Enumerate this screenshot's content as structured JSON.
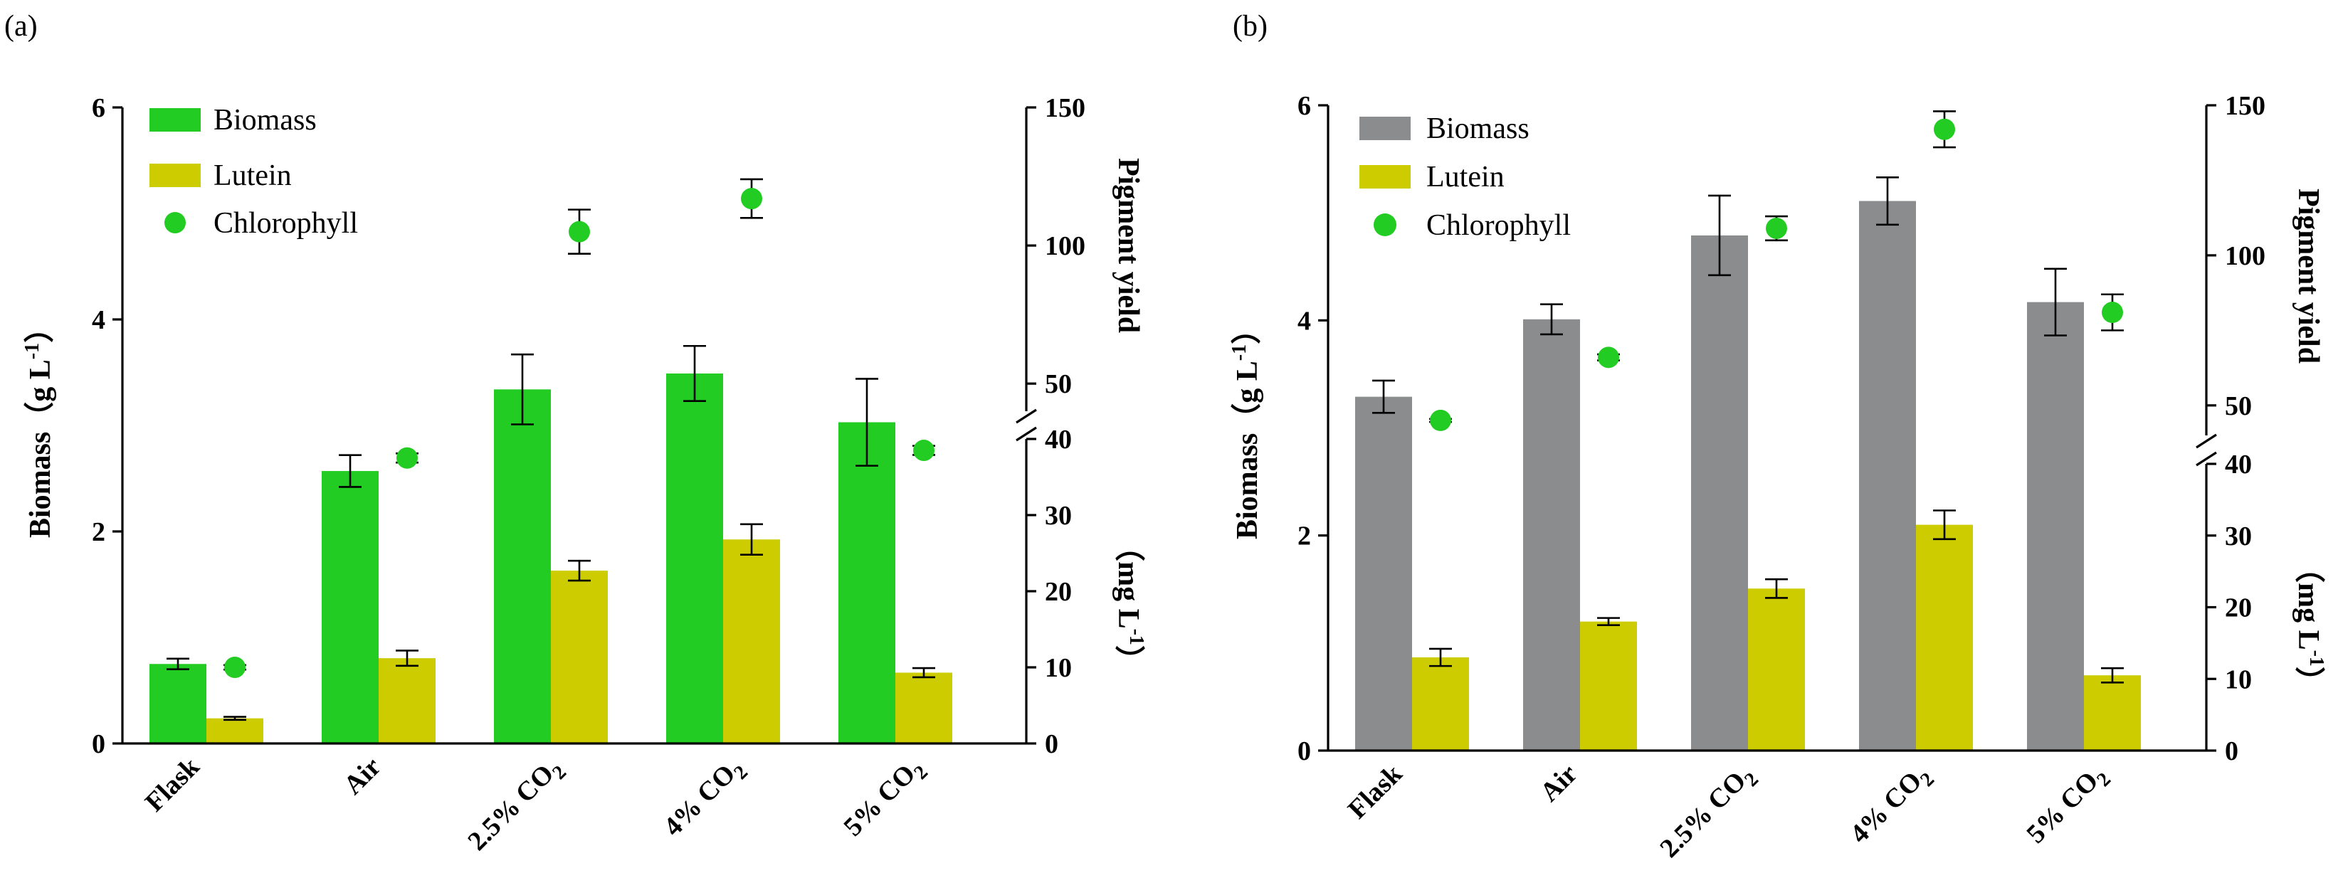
{
  "colors": {
    "biomass_a": "#22cc22",
    "biomass_b": "#8a8c8e",
    "lutein": "#cccc00",
    "chlorophyll": "#22cc22"
  },
  "chart_data": [
    {
      "type": "bar",
      "panel_label": "(a)",
      "categories": [
        "Flask",
        "Air",
        "2.5% CO2",
        "4% CO2",
        "5% CO2"
      ],
      "category_display": [
        {
          "base": "Flask",
          "sub": ""
        },
        {
          "base": "Air",
          "sub": ""
        },
        {
          "base": "2.5% CO",
          "sub": "2"
        },
        {
          "base": "4% CO",
          "sub": "2"
        },
        {
          "base": "5% CO",
          "sub": "2"
        }
      ],
      "legend": {
        "position": "top-left",
        "entries": [
          "Biomass",
          "Lutein",
          "Chlorophyll"
        ]
      },
      "left_axis": {
        "title": "Biomass（g L",
        "title_sup": "-1",
        "title_end": "）",
        "ylim": [
          0,
          6
        ],
        "ticks": [
          0,
          2,
          4,
          6
        ],
        "tick_labels": [
          "0",
          "2",
          "4",
          "6"
        ]
      },
      "right_axis": {
        "title_upper": "Pigment yield",
        "title_lower": "（mg L",
        "title_lower_sup": "-1",
        "title_lower_end": "）",
        "broken": true,
        "lower_range": [
          0,
          40
        ],
        "upper_range": [
          40,
          150
        ],
        "ticks": [
          0,
          10,
          20,
          30,
          40,
          50,
          100,
          150
        ],
        "tick_labels": [
          "0",
          "10",
          "20",
          "30",
          "40",
          "50",
          "100",
          "150"
        ]
      },
      "series": [
        {
          "name": "Biomass",
          "axis": "left",
          "values": [
            0.75,
            2.57,
            3.34,
            3.49,
            3.03
          ],
          "errors": [
            0.05,
            0.15,
            0.33,
            0.26,
            0.41
          ]
        },
        {
          "name": "Lutein",
          "axis": "right",
          "values": [
            3.3,
            11.2,
            22.7,
            26.8,
            9.3
          ],
          "errors": [
            0.2,
            1.0,
            1.3,
            2.0,
            0.6
          ]
        },
        {
          "name": "Chlorophyll",
          "axis": "right",
          "values": [
            10,
            37.5,
            105,
            117,
            38.5
          ],
          "errors": [
            0.3,
            0.6,
            8,
            7,
            0.6
          ]
        }
      ]
    },
    {
      "type": "bar",
      "panel_label": "(b)",
      "categories": [
        "Flask",
        "Air",
        "2.5% CO2",
        "4% CO2",
        "5% CO2"
      ],
      "category_display": [
        {
          "base": "Flask",
          "sub": ""
        },
        {
          "base": "Air",
          "sub": ""
        },
        {
          "base": "2.5% CO",
          "sub": "2"
        },
        {
          "base": "4% CO",
          "sub": "2"
        },
        {
          "base": "5% CO",
          "sub": "2"
        }
      ],
      "legend": {
        "position": "top-left",
        "entries": [
          "Biomass",
          "Lutein",
          "Chlorophyll"
        ]
      },
      "left_axis": {
        "title": "Biomass（g L",
        "title_sup": "-1",
        "title_end": "）",
        "ylim": [
          0,
          6
        ],
        "ticks": [
          0,
          2,
          4,
          6
        ],
        "tick_labels": [
          "0",
          "2",
          "4",
          "6"
        ]
      },
      "right_axis": {
        "title_upper": "Pigment yield",
        "title_lower": "（mg L",
        "title_lower_sup": "-1",
        "title_lower_end": "）",
        "broken": true,
        "lower_range": [
          0,
          40
        ],
        "upper_range": [
          40,
          150
        ],
        "ticks": [
          0,
          10,
          20,
          30,
          40,
          50,
          100,
          150
        ],
        "tick_labels": [
          "0",
          "10",
          "20",
          "30",
          "40",
          "50",
          "100",
          "150"
        ]
      },
      "series": [
        {
          "name": "Biomass",
          "axis": "left",
          "values": [
            3.29,
            4.01,
            4.79,
            5.11,
            4.17
          ],
          "errors": [
            0.15,
            0.14,
            0.37,
            0.22,
            0.31
          ]
        },
        {
          "name": "Lutein",
          "axis": "right",
          "values": [
            13,
            18,
            22.6,
            31.5,
            10.5
          ],
          "errors": [
            1.2,
            0.5,
            1.3,
            2.0,
            1.0
          ]
        },
        {
          "name": "Chlorophyll",
          "axis": "right",
          "values": [
            45,
            66,
            109,
            142,
            81
          ],
          "errors": [
            0.5,
            1.0,
            4,
            6,
            6
          ]
        }
      ]
    }
  ]
}
